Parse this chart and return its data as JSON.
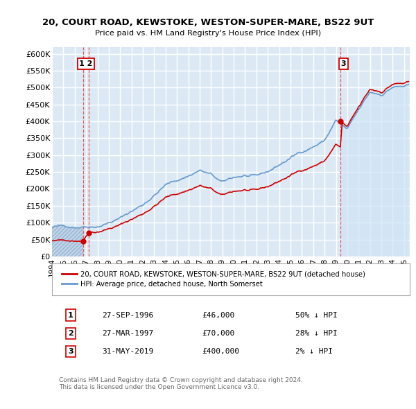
{
  "title": "20, COURT ROAD, KEWSTOKE, WESTON-SUPER-MARE, BS22 9UT",
  "subtitle": "Price paid vs. HM Land Registry's House Price Index (HPI)",
  "ylim": [
    0,
    620000
  ],
  "yticks": [
    0,
    50000,
    100000,
    150000,
    200000,
    250000,
    300000,
    350000,
    400000,
    450000,
    500000,
    550000,
    600000
  ],
  "ytick_labels": [
    "£0",
    "£50K",
    "£100K",
    "£150K",
    "£200K",
    "£250K",
    "£300K",
    "£350K",
    "£400K",
    "£450K",
    "£500K",
    "£550K",
    "£600K"
  ],
  "xlim_start": 1994.0,
  "xlim_end": 2025.5,
  "xticks": [
    1994,
    1995,
    1996,
    1997,
    1998,
    1999,
    2000,
    2001,
    2002,
    2003,
    2004,
    2005,
    2006,
    2007,
    2008,
    2009,
    2010,
    2011,
    2012,
    2013,
    2014,
    2015,
    2016,
    2017,
    2018,
    2019,
    2020,
    2021,
    2022,
    2023,
    2024,
    2025
  ],
  "plot_bg_color": "#dce9f5",
  "grid_color": "#ffffff",
  "hatch_color": "#c0d4ea",
  "sale_color": "#cc0000",
  "hpi_color": "#6699cc",
  "vline_color": "#dd4444",
  "sale1_year": 1996.74,
  "sale1_price": 46000,
  "sale2_year": 1997.24,
  "sale2_price": 70000,
  "sale3_year": 2019.41,
  "sale3_price": 400000,
  "legend_sale_label": "20, COURT ROAD, KEWSTOKE, WESTON-SUPER-MARE, BS22 9UT (detached house)",
  "legend_hpi_label": "HPI: Average price, detached house, North Somerset",
  "table_rows": [
    {
      "num": "1",
      "date": "27-SEP-1996",
      "price": "£46,000",
      "note": "50% ↓ HPI"
    },
    {
      "num": "2",
      "date": "27-MAR-1997",
      "price": "£70,000",
      "note": "28% ↓ HPI"
    },
    {
      "num": "3",
      "date": "31-MAY-2019",
      "price": "£400,000",
      "note": "2% ↓ HPI"
    }
  ],
  "footnote": "Contains HM Land Registry data © Crown copyright and database right 2024.\nThis data is licensed under the Open Government Licence v3.0."
}
